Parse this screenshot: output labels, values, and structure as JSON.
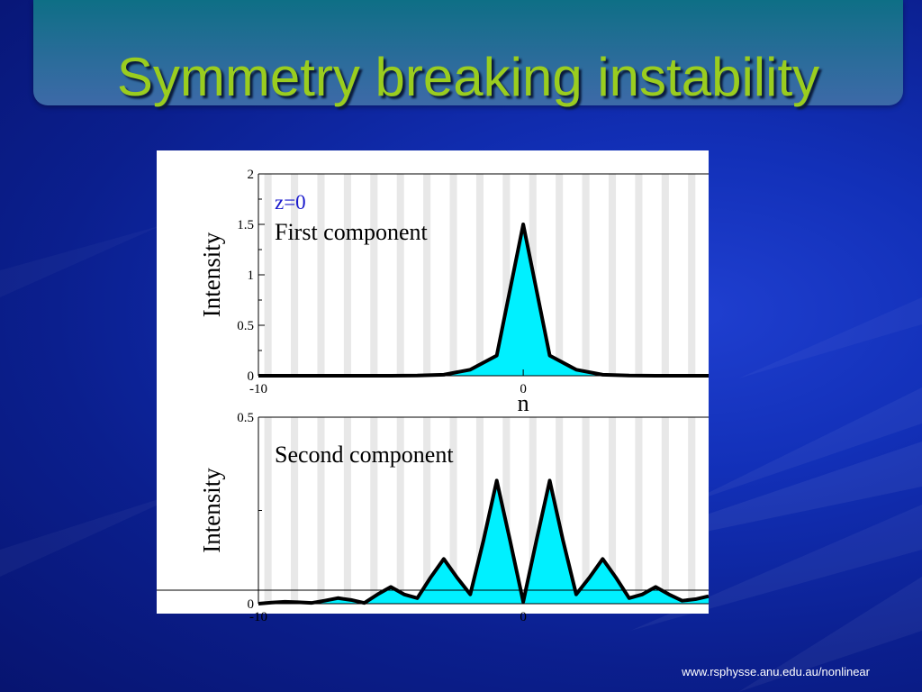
{
  "slide": {
    "title": "Symmetry breaking instability",
    "footer_url": "www.rsphysse.anu.edu.au/nonlinear",
    "colors": {
      "title": "#9acd1f",
      "fill": "#00f0ff",
      "line": "#000000",
      "label_blue": "#1a1acc"
    }
  },
  "chart_data": [
    {
      "type": "area",
      "annotation_top": "z=0",
      "annotation": "First component",
      "xlabel": "n",
      "ylabel": "Intensity",
      "ylim": [
        0,
        2
      ],
      "yticks": [
        0,
        0.5,
        1,
        1.5,
        2
      ],
      "ytick_labels": [
        "0",
        "0.5",
        "1",
        "1.5",
        "2"
      ],
      "xlim": [
        -10,
        7
      ],
      "xticks": [
        -10,
        0
      ],
      "xtick_labels": [
        "-10",
        "0"
      ],
      "x": [
        -10,
        -9,
        -8,
        -7,
        -6,
        -5,
        -4,
        -3,
        -2,
        -1,
        0,
        1,
        2,
        3,
        4,
        5,
        6,
        7
      ],
      "y": [
        0,
        0,
        0,
        0,
        0,
        0,
        0.002,
        0.01,
        0.06,
        0.2,
        1.5,
        0.2,
        0.06,
        0.01,
        0.002,
        0,
        0,
        0
      ]
    },
    {
      "type": "area",
      "annotation": "Second component",
      "xlabel": "",
      "ylabel": "Intensity",
      "ylim": [
        0,
        0.5
      ],
      "yticks": [
        0,
        0.5
      ],
      "ytick_labels": [
        "0",
        "0.5"
      ],
      "xlim": [
        -10,
        7
      ],
      "xticks": [
        -10,
        0
      ],
      "xtick_labels": [
        "-10",
        "0"
      ],
      "x": [
        -10,
        -9.5,
        -9,
        -8.5,
        -8,
        -7.5,
        -7,
        -6.5,
        -6,
        -5.5,
        -5,
        -4.5,
        -4,
        -3.5,
        -3,
        -2.5,
        -2,
        -1.5,
        -1,
        -0.5,
        0,
        0.5,
        1,
        1.5,
        2,
        2.5,
        3,
        3.5,
        4,
        4.5,
        5,
        5.5,
        6,
        6.5,
        7
      ],
      "y": [
        0,
        0.003,
        0.005,
        0.004,
        0.002,
        0.008,
        0.015,
        0.01,
        0.002,
        0.025,
        0.045,
        0.025,
        0.015,
        0.07,
        0.12,
        0.07,
        0.025,
        0.17,
        0.33,
        0.17,
        0.005,
        0.17,
        0.33,
        0.17,
        0.025,
        0.07,
        0.12,
        0.07,
        0.015,
        0.025,
        0.045,
        0.025,
        0.008,
        0.012,
        0.02
      ]
    }
  ]
}
